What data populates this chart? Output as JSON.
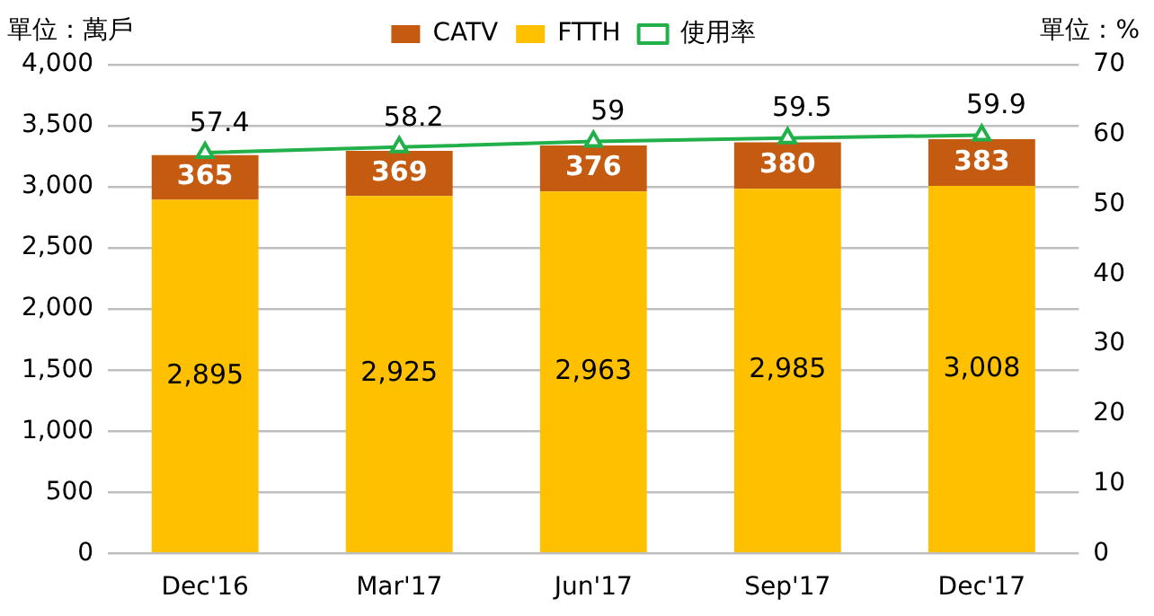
{
  "chart_data": {
    "type": "bar",
    "stacked": true,
    "ylabel": "單位：萬戶",
    "y2label": "單位：%",
    "categories": [
      "Dec'16",
      "Mar'17",
      "Jun'17",
      "Sep'17",
      "Dec'17"
    ],
    "series": [
      {
        "name": "FTTH",
        "color": "#ffc000",
        "values": [
          2895,
          2925,
          2963,
          2985,
          3008
        ],
        "value_labels": [
          "2,895",
          "2,925",
          "2,963",
          "2,985",
          "3,008"
        ]
      },
      {
        "name": "CATV",
        "color": "#c55a11",
        "values": [
          365,
          369,
          376,
          380,
          383
        ]
      },
      {
        "name": "使用率",
        "type": "line",
        "axis": "y2",
        "color": "#22b04b",
        "marker": "triangle",
        "values": [
          57.4,
          58.2,
          59,
          59.5,
          59.9
        ]
      }
    ],
    "ylim": [
      0,
      4000
    ],
    "yticks": [
      0,
      500,
      {
        "value": 1000,
        "label": "1,000"
      },
      {
        "value": 1500,
        "label": "1,500"
      },
      {
        "value": 2000,
        "label": "2,000"
      },
      {
        "value": 2500,
        "label": "2,500"
      },
      {
        "value": 3000,
        "label": "3,000"
      },
      {
        "value": 3500,
        "label": "3,500"
      },
      {
        "value": 4000,
        "label": "4,000"
      }
    ],
    "y2lim": [
      0,
      70
    ],
    "y2ticks": [
      0,
      10,
      20,
      30,
      40,
      50,
      60,
      70
    ],
    "grid": "y",
    "legend": "top",
    "data_labels": true
  }
}
